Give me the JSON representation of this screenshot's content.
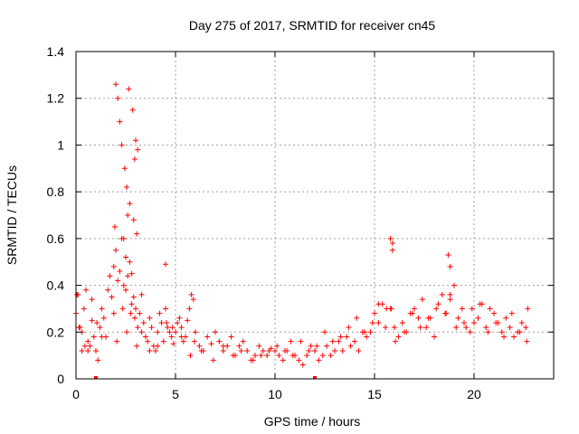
{
  "chart_data": {
    "type": "scatter",
    "title": "Day 275 of 2017, SRMTID for receiver cn45",
    "xlabel": "GPS time / hours",
    "ylabel": "SRMTID / TECUs",
    "xlim": [
      0,
      24
    ],
    "ylim": [
      0,
      1.4
    ],
    "x_ticks": [
      0,
      5,
      10,
      15,
      20
    ],
    "x_tick_labels": [
      "0",
      "5",
      "10",
      "15",
      "20"
    ],
    "y_ticks": [
      0,
      0.2,
      0.4,
      0.6,
      0.8,
      1.0,
      1.2,
      1.4
    ],
    "y_tick_labels": [
      "0",
      "0.2",
      "0.4",
      "0.6",
      "0.8",
      "1",
      "1.2",
      "1.4"
    ],
    "grid": true,
    "marker": "plus",
    "color": "#ff0000",
    "series": [
      {
        "name": "SRMTID",
        "x": [
          0.0,
          0.1,
          0.2,
          0.3,
          0.4,
          0.5,
          0.6,
          0.7,
          0.8,
          0.9,
          1.0,
          1.1,
          1.2,
          1.3,
          1.4,
          1.5,
          1.6,
          1.7,
          1.8,
          1.9,
          2.0,
          2.1,
          2.2,
          2.3,
          2.4,
          2.5,
          2.6,
          2.7,
          2.8,
          2.9,
          3.0,
          3.1,
          3.2,
          3.3,
          3.4,
          3.5,
          3.6,
          3.7,
          3.8,
          3.9,
          4.0,
          4.1,
          4.2,
          4.3,
          4.4,
          4.5,
          4.6,
          4.7,
          4.8,
          4.9,
          5.0,
          5.1,
          5.2,
          5.3,
          5.4,
          5.5,
          5.6,
          5.7,
          5.8,
          5.9,
          6.0,
          6.2,
          6.4,
          6.6,
          6.8,
          7.0,
          7.2,
          7.4,
          7.6,
          7.8,
          8.0,
          8.2,
          8.4,
          8.6,
          8.8,
          9.0,
          9.2,
          9.4,
          9.6,
          9.8,
          10.0,
          10.2,
          10.4,
          10.6,
          10.8,
          11.0,
          11.2,
          11.4,
          11.6,
          11.8,
          12.0,
          12.2,
          12.4,
          12.6,
          12.8,
          13.0,
          13.2,
          13.4,
          13.6,
          13.8,
          14.0,
          14.2,
          14.4,
          14.6,
          14.8,
          15.0,
          15.2,
          15.4,
          15.6,
          15.8,
          15.9,
          16.0,
          16.2,
          16.4,
          16.6,
          16.8,
          17.0,
          17.2,
          17.4,
          17.6,
          17.8,
          18.0,
          18.2,
          18.4,
          18.6,
          18.8,
          19.0,
          19.2,
          19.4,
          19.6,
          19.8,
          20.0,
          20.2,
          20.4,
          20.6,
          20.8,
          21.0,
          21.2,
          21.4,
          21.6,
          21.8,
          22.0,
          22.2,
          22.4,
          22.6,
          22.7,
          0.05,
          0.15,
          0.3,
          0.45,
          0.6,
          0.8,
          1.05,
          1.3,
          1.9,
          2.05,
          2.35,
          2.55,
          2.75,
          2.95,
          3.05,
          3.3,
          3.7,
          4.1,
          4.55,
          4.85,
          5.3,
          5.75,
          5.95,
          6.3,
          6.9,
          7.4,
          7.9,
          8.3,
          8.9,
          9.3,
          9.7,
          10.1,
          10.5,
          10.9,
          11.3,
          11.7,
          12.1,
          12.5,
          12.9,
          13.3,
          13.7,
          14.1,
          14.5,
          14.9,
          15.2,
          15.55,
          15.85,
          16.05,
          16.5,
          16.9,
          17.3,
          17.7,
          18.1,
          18.55,
          18.8,
          19.1,
          19.5,
          19.9,
          20.3,
          20.7,
          21.1,
          21.5,
          21.9,
          22.3,
          22.65,
          2.0,
          2.1,
          2.2,
          2.3,
          2.45,
          2.55,
          2.65,
          2.85,
          2.95,
          3.0,
          2.6,
          2.4,
          2.7,
          2.9,
          3.1,
          1.95,
          2.5,
          2.8,
          3.05,
          15.8,
          15.9,
          18.7,
          18.8,
          4.5
        ],
        "y": [
          0.28,
          0.36,
          0.22,
          0.12,
          0.3,
          0.38,
          0.16,
          0.14,
          0.25,
          0.18,
          0.12,
          0.08,
          0.22,
          0.3,
          0.26,
          0.18,
          0.38,
          0.44,
          0.35,
          0.48,
          0.55,
          0.42,
          0.46,
          0.6,
          0.4,
          0.38,
          0.44,
          0.5,
          0.32,
          0.35,
          0.3,
          0.22,
          0.28,
          0.2,
          0.24,
          0.18,
          0.16,
          0.26,
          0.22,
          0.14,
          0.12,
          0.2,
          0.28,
          0.24,
          0.16,
          0.3,
          0.22,
          0.2,
          0.18,
          0.15,
          0.2,
          0.24,
          0.26,
          0.22,
          0.16,
          0.18,
          0.25,
          0.3,
          0.36,
          0.34,
          0.2,
          0.14,
          0.12,
          0.18,
          0.15,
          0.2,
          0.16,
          0.12,
          0.14,
          0.18,
          0.1,
          0.14,
          0.16,
          0.12,
          0.08,
          0.1,
          0.14,
          0.12,
          0.1,
          0.13,
          0.12,
          0.1,
          0.08,
          0.12,
          0.16,
          0.1,
          0.08,
          0.06,
          0.1,
          0.14,
          0.12,
          0.08,
          0.1,
          0.14,
          0.1,
          0.12,
          0.16,
          0.12,
          0.18,
          0.14,
          0.16,
          0.12,
          0.2,
          0.18,
          0.2,
          0.28,
          0.24,
          0.32,
          0.3,
          0.3,
          0.55,
          0.22,
          0.18,
          0.24,
          0.2,
          0.28,
          0.3,
          0.26,
          0.34,
          0.22,
          0.26,
          0.18,
          0.32,
          0.36,
          0.28,
          0.34,
          0.4,
          0.26,
          0.3,
          0.22,
          0.2,
          0.24,
          0.26,
          0.32,
          0.22,
          0.3,
          0.28,
          0.24,
          0.2,
          0.26,
          0.22,
          0.18,
          0.2,
          0.24,
          0.22,
          0.3,
          0.36,
          0.22,
          0.2,
          0.14,
          0.12,
          0.34,
          0.24,
          0.18,
          0.28,
          0.16,
          0.3,
          0.2,
          0.28,
          0.26,
          0.14,
          0.36,
          0.12,
          0.14,
          0.24,
          0.22,
          0.18,
          0.1,
          0.16,
          0.12,
          0.08,
          0.14,
          0.1,
          0.12,
          0.08,
          0.1,
          0.12,
          0.14,
          0.12,
          0.1,
          0.16,
          0.12,
          0.14,
          0.2,
          0.16,
          0.18,
          0.22,
          0.26,
          0.2,
          0.24,
          0.32,
          0.22,
          0.3,
          0.16,
          0.2,
          0.28,
          0.22,
          0.26,
          0.3,
          0.28,
          0.36,
          0.22,
          0.24,
          0.3,
          0.32,
          0.2,
          0.24,
          0.18,
          0.28,
          0.2,
          0.16,
          1.26,
          1.2,
          1.1,
          1.0,
          0.9,
          0.82,
          1.24,
          1.15,
          0.94,
          1.02,
          0.7,
          0.6,
          0.75,
          0.68,
          0.98,
          0.65,
          0.52,
          0.45,
          0.62,
          0.6,
          0.58,
          0.53,
          0.48,
          0.49
        ],
        "tiny_marks": [
          {
            "x": 1.0,
            "y": 0.0
          },
          {
            "x": 12.0,
            "y": 0.0
          }
        ]
      }
    ]
  }
}
